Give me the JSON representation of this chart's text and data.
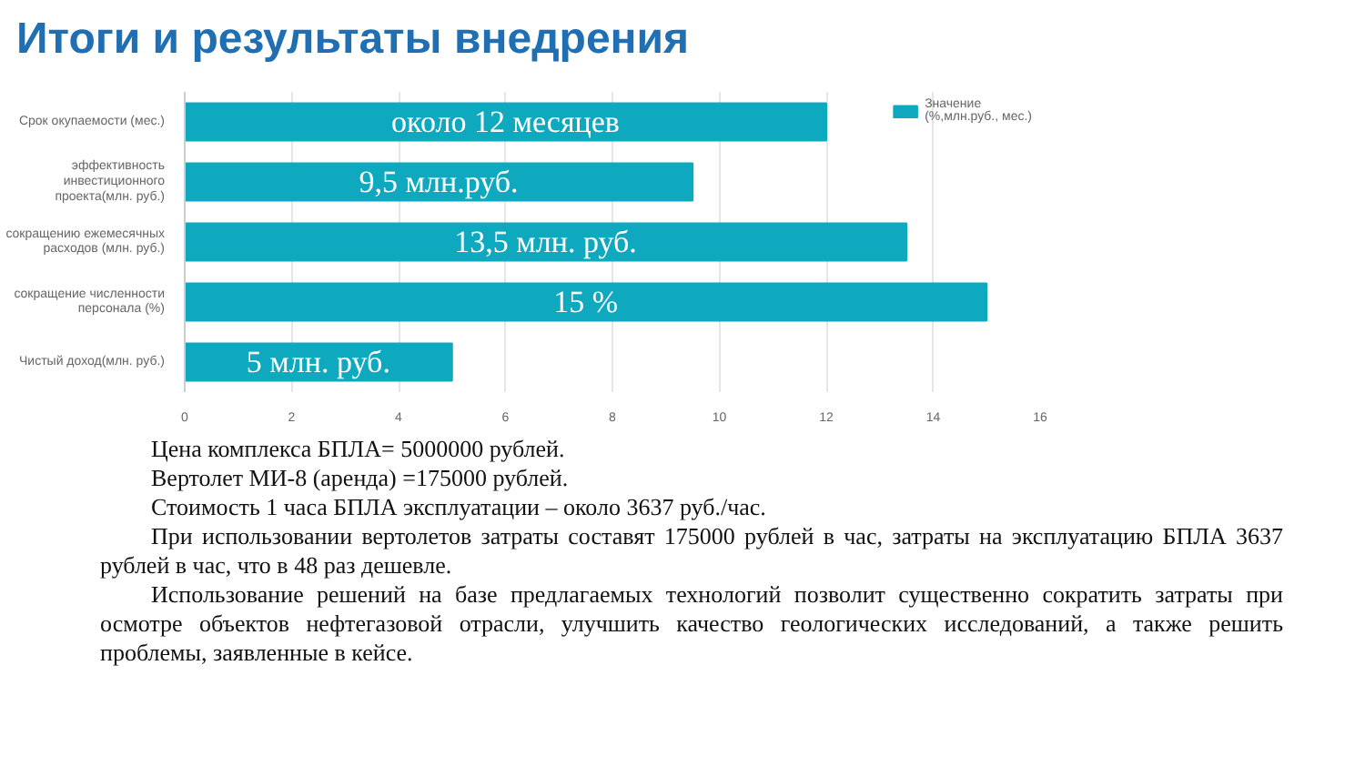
{
  "chart_data": {
    "type": "bar",
    "orientation": "horizontal",
    "title": "Итоги и результаты внедрения",
    "categories": [
      "Срок окупаемости (мес.)",
      "эффективность инвестиционного проекта(млн. руб.)",
      "сокращению ежемесячных расходов (млн. руб.)",
      "сокращение численности персонала (%)",
      "Чистый доход(млн. руб.)"
    ],
    "series": [
      {
        "name": "Значение (%,млн.руб., мес.)",
        "color": "#0fa9bf",
        "values": [
          12,
          9.5,
          13.5,
          15,
          5
        ],
        "value_labels": [
          "около 12 месяцев",
          "9,5 млн.руб.",
          "13,5 млн. руб.",
          "15 %",
          "5 млн. руб."
        ]
      }
    ],
    "xlim": [
      0,
      16
    ],
    "xticks": [
      0,
      2,
      4,
      6,
      8,
      10,
      12,
      14,
      16
    ],
    "grid": "x",
    "legend": "top right",
    "annotations": [
      "Цена комплекса БПЛА= 5000000 рублей.",
      "Вертолет МИ-8 (аренда) =175000 рублей.",
      "Стоимость 1 часа БПЛА эксплуатации – около 3637 руб./час.",
      "При использовании вертолетов затраты составят 175000 рублей в час, затраты на эксплуатацию БПЛА 3637 рублей в час, что в 48 раз дешевле.",
      "Использование решений на базе предлагаемых технологий позволит существенно сократить затраты при осмотре объектов нефтегазовой отрасли, улучшить качество геологических исследований, а также решить проблемы, заявленные в кейсе."
    ]
  }
}
